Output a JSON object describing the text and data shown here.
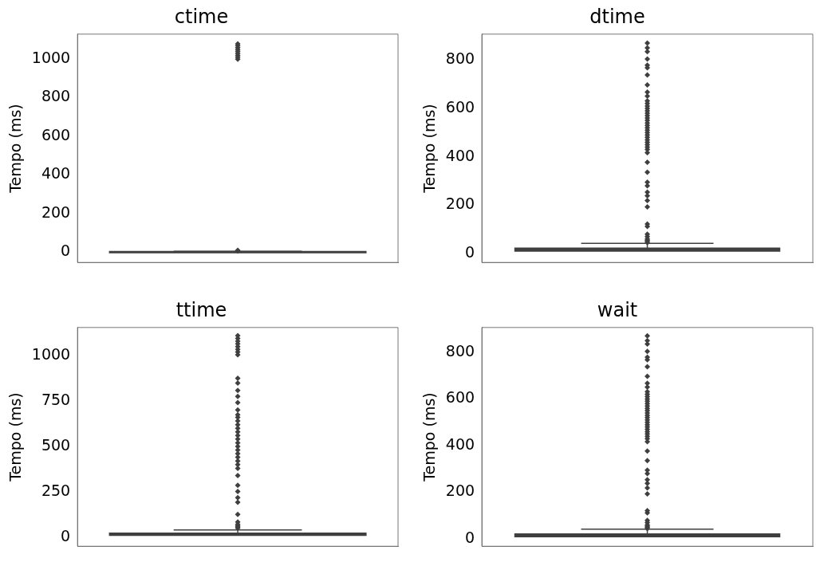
{
  "chart_data": [
    {
      "type": "box",
      "title": "ctime",
      "ylabel": "Tempo (ms)",
      "categories": [
        null
      ],
      "color": "#3f3f3f",
      "ylim": [
        -55,
        1130
      ],
      "yticks": [
        0,
        200,
        400,
        600,
        800,
        1000
      ],
      "boxes": [
        {
          "q1": 1,
          "median": 1,
          "q3": 2,
          "high": 3,
          "outliers": [
            5,
            8,
            1000,
            1010,
            1020,
            1030,
            1040,
            1050,
            1060,
            1070,
            1080
          ]
        }
      ]
    },
    {
      "type": "box",
      "title": "dtime",
      "ylabel": "Tempo (ms)",
      "categories": [
        null
      ],
      "color": "#3f3f3f",
      "ylim": [
        -37,
        907
      ],
      "yticks": [
        0,
        200,
        400,
        600,
        800
      ],
      "boxes": [
        {
          "q1": 10,
          "median": 17,
          "q3": 22,
          "high": 42,
          "outliers": [
            45,
            50,
            55,
            60,
            70,
            80,
            112,
            122,
            193,
            219,
            239,
            254,
            280,
            295,
            336,
            377,
            417,
            430,
            440,
            450,
            460,
            470,
            480,
            490,
            500,
            510,
            520,
            530,
            540,
            550,
            560,
            570,
            580,
            590,
            600,
            610,
            620,
            631,
            651,
            667,
            697,
            738,
            768,
            779,
            804,
            835,
            850,
            870
          ]
        }
      ]
    },
    {
      "type": "box",
      "title": "ttime",
      "ylabel": "Tempo (ms)",
      "categories": [
        null
      ],
      "color": "#3f3f3f",
      "ylim": [
        -50,
        1155
      ],
      "yticks": [
        0,
        250,
        500,
        750,
        1000
      ],
      "boxes": [
        {
          "q1": 10,
          "median": 17,
          "q3": 22,
          "high": 40,
          "outliers": [
            50,
            56,
            63,
            71,
            84,
            125,
            192,
            218,
            252,
            286,
            339,
            379,
            400,
            420,
            440,
            460,
            480,
            500,
            520,
            540,
            560,
            580,
            600,
            620,
            640,
            660,
            674,
            701,
            741,
            775,
            808,
            849,
            875,
            1005,
            1020,
            1035,
            1050,
            1065,
            1080,
            1095,
            1110
          ]
        }
      ]
    },
    {
      "type": "box",
      "title": "wait",
      "ylabel": "Tempo (ms)",
      "categories": [
        null
      ],
      "color": "#3f3f3f",
      "ylim": [
        -31,
        906
      ],
      "yticks": [
        0,
        200,
        400,
        600,
        800
      ],
      "boxes": [
        {
          "q1": 10,
          "median": 17,
          "q3": 22,
          "high": 42,
          "outliers": [
            45,
            50,
            55,
            60,
            70,
            80,
            112,
            122,
            193,
            219,
            239,
            254,
            280,
            295,
            336,
            377,
            417,
            430,
            440,
            450,
            460,
            470,
            480,
            490,
            500,
            510,
            520,
            530,
            540,
            550,
            560,
            570,
            580,
            590,
            600,
            610,
            620,
            631,
            651,
            667,
            697,
            738,
            768,
            779,
            804,
            835,
            850,
            870
          ]
        }
      ]
    }
  ]
}
